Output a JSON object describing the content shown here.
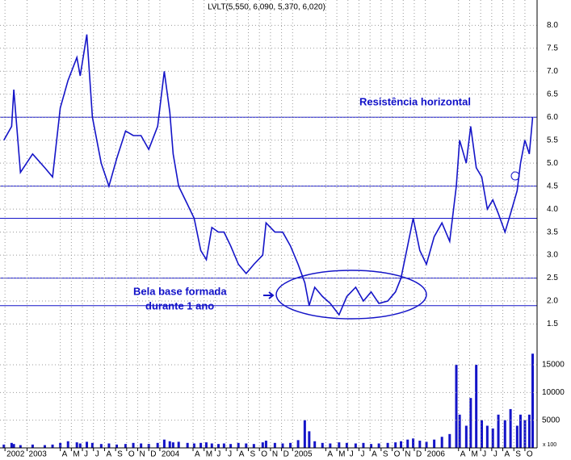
{
  "chart_data": {
    "type": "line",
    "title": "LVLT(5,550, 6,090, 5,370, 6,020)",
    "annotations": [
      "Resistência horizontal",
      "Bela base formada",
      "durante 1 ano"
    ],
    "volume_unit": "x 100",
    "color": "#1414c8",
    "grid": true,
    "x": [
      -2.1,
      -1.4,
      -1.2,
      -0.6,
      0.5,
      1.6,
      2.3,
      3.0,
      3.7,
      4.5,
      4.8,
      5.4,
      5.9,
      6.7,
      7.4,
      8.1,
      8.9,
      9.6,
      10.3,
      11.0,
      11.8,
      12.4,
      12.9,
      13.2,
      13.7,
      14.5,
      15.1,
      15.7,
      16.2,
      16.7,
      17.3,
      17.8,
      18.4,
      19.1,
      19.8,
      20.5,
      21.3,
      21.6,
      22.4,
      23.1,
      23.8,
      24.5,
      25.1,
      25.5,
      26.0,
      26.7,
      27.4,
      28.2,
      28.9,
      29.7,
      30.4,
      31.1,
      31.8,
      32.6,
      33.3,
      33.8,
      34.4,
      34.9,
      35.5,
      36.1,
      36.8,
      37.5,
      38.2,
      38.8,
      39.1,
      39.7,
      40.1,
      40.6,
      41.1,
      41.6,
      42.1,
      42.6,
      43.2,
      43.7,
      44.3,
      44.6,
      45.0,
      45.4,
      45.7
    ],
    "values": [
      5.5,
      5.8,
      6.6,
      4.8,
      5.2,
      4.9,
      4.7,
      6.2,
      6.8,
      7.3,
      6.9,
      7.8,
      6.0,
      5.0,
      4.5,
      5.1,
      5.7,
      5.6,
      5.6,
      5.3,
      5.8,
      7.0,
      6.1,
      5.2,
      4.5,
      4.1,
      3.8,
      3.1,
      2.9,
      3.6,
      3.5,
      3.5,
      3.2,
      2.8,
      2.6,
      2.8,
      3.0,
      3.7,
      3.5,
      3.5,
      3.2,
      2.8,
      2.4,
      1.9,
      2.3,
      2.1,
      1.95,
      1.7,
      2.1,
      2.3,
      2.0,
      2.2,
      1.95,
      2.0,
      2.2,
      2.5,
      3.2,
      3.8,
      3.1,
      2.8,
      3.4,
      3.7,
      3.3,
      4.5,
      5.5,
      5.0,
      5.8,
      4.9,
      4.7,
      4.0,
      4.2,
      3.9,
      3.5,
      3.9,
      4.4,
      5.0,
      5.5,
      5.2,
      6.0
    ],
    "volume_values": [
      600,
      900,
      700,
      500,
      600,
      500,
      600,
      900,
      1200,
      1000,
      800,
      1100,
      900,
      700,
      800,
      600,
      700,
      900,
      800,
      700,
      900,
      1500,
      1200,
      1000,
      1100,
      900,
      800,
      900,
      1000,
      800,
      700,
      800,
      700,
      900,
      800,
      700,
      1000,
      1300,
      900,
      800,
      900,
      1400,
      5000,
      3000,
      1200,
      900,
      800,
      1000,
      900,
      800,
      900,
      700,
      800,
      900,
      1000,
      1200,
      1500,
      1700,
      1300,
      1100,
      1500,
      2000,
      2500,
      15000,
      6000,
      4000,
      9000,
      15000,
      5000,
      4000,
      3500,
      6000,
      5000,
      7000,
      4000,
      6000,
      5000,
      6000,
      17000
    ],
    "levels": [
      6.0,
      4.5,
      3.8,
      2.5,
      1.9
    ],
    "xlim": [
      -2.45,
      46.1
    ],
    "xticks": [
      {
        "value": -2,
        "label": "2002"
      },
      {
        "value": 0,
        "label": "2003"
      },
      {
        "value": 3,
        "label": "A"
      },
      {
        "value": 4,
        "label": "M"
      },
      {
        "value": 5,
        "label": "J"
      },
      {
        "value": 6,
        "label": "J"
      },
      {
        "value": 7,
        "label": "A"
      },
      {
        "value": 8,
        "label": "S"
      },
      {
        "value": 9,
        "label": "O"
      },
      {
        "value": 10,
        "label": "N"
      },
      {
        "value": 11,
        "label": "D"
      },
      {
        "value": 12,
        "label": "2004"
      },
      {
        "value": 15,
        "label": "A"
      },
      {
        "value": 16,
        "label": "M"
      },
      {
        "value": 17,
        "label": "J"
      },
      {
        "value": 18,
        "label": "J"
      },
      {
        "value": 19,
        "label": "A"
      },
      {
        "value": 20,
        "label": "S"
      },
      {
        "value": 21,
        "label": "O"
      },
      {
        "value": 22,
        "label": "N"
      },
      {
        "value": 23,
        "label": "D"
      },
      {
        "value": 24,
        "label": "2005"
      },
      {
        "value": 27,
        "label": "A"
      },
      {
        "value": 28,
        "label": "M"
      },
      {
        "value": 29,
        "label": "J"
      },
      {
        "value": 30,
        "label": "J"
      },
      {
        "value": 31,
        "label": "A"
      },
      {
        "value": 32,
        "label": "S"
      },
      {
        "value": 33,
        "label": "O"
      },
      {
        "value": 34,
        "label": "N"
      },
      {
        "value": 35,
        "label": "D"
      },
      {
        "value": 36,
        "label": "2006"
      },
      {
        "value": 39,
        "label": "A"
      },
      {
        "value": 40,
        "label": "M"
      },
      {
        "value": 41,
        "label": "J"
      },
      {
        "value": 42,
        "label": "J"
      },
      {
        "value": 43,
        "label": "A"
      },
      {
        "value": 44,
        "label": "S"
      },
      {
        "value": 45,
        "label": "O"
      }
    ],
    "ylim": [
      1.0,
      8.55
    ],
    "yticks": [
      {
        "value": 8.0,
        "label": "8.0"
      },
      {
        "value": 7.5,
        "label": "7.5"
      },
      {
        "value": 7.0,
        "label": "7.0"
      },
      {
        "value": 6.5,
        "label": "6.5"
      },
      {
        "value": 6.0,
        "label": "6.0"
      },
      {
        "value": 5.5,
        "label": "5.5"
      },
      {
        "value": 5.0,
        "label": "5.0"
      },
      {
        "value": 4.5,
        "label": "4.5"
      },
      {
        "value": 4.0,
        "label": "4.0"
      },
      {
        "value": 3.5,
        "label": "3.5"
      },
      {
        "value": 3.0,
        "label": "3.0"
      },
      {
        "value": 2.5,
        "label": "2.5"
      },
      {
        "value": 2.0,
        "label": "2.0"
      },
      {
        "value": 1.5,
        "label": "1.5"
      }
    ],
    "y2lim": [
      0,
      18200
    ],
    "y2ticks": [
      5000,
      10000,
      15000
    ]
  }
}
